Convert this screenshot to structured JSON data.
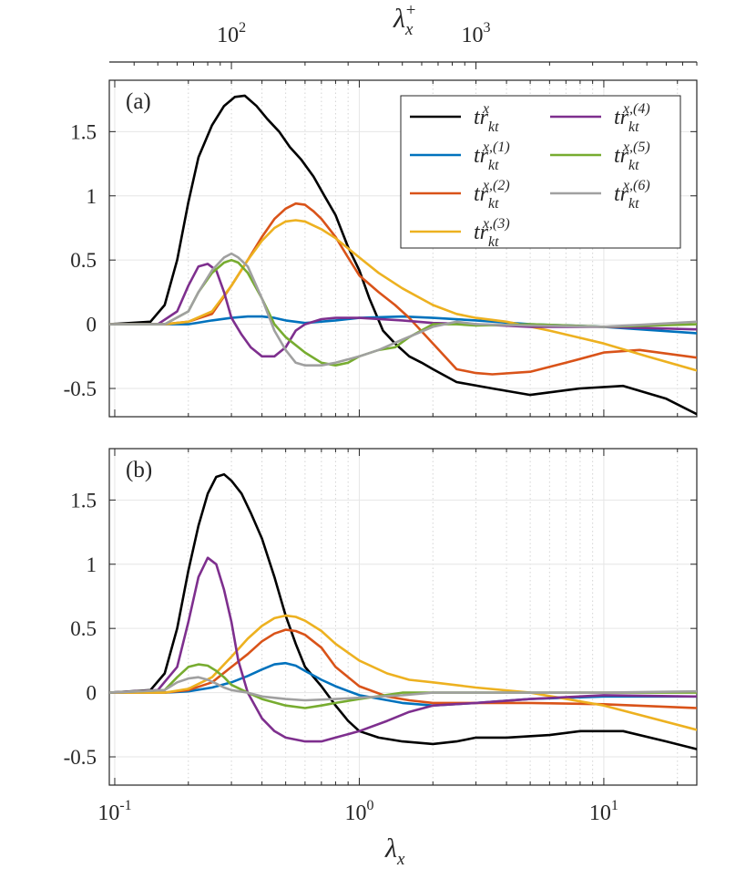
{
  "top_axis": {
    "label": "λ",
    "label_sub": "x",
    "label_sup": "+",
    "tick_labels": [
      {
        "base": "10",
        "exp": "2"
      },
      {
        "base": "10",
        "exp": "3"
      }
    ],
    "tick_positions_lambda_x": [
      0.3,
      3.0
    ]
  },
  "bottom_axis": {
    "label": "λ",
    "label_sub": "x",
    "tick_labels": [
      {
        "base": "10",
        "exp": "-1"
      },
      {
        "base": "10",
        "exp": "0"
      },
      {
        "base": "10",
        "exp": "1"
      }
    ]
  },
  "legend": {
    "entries": [
      {
        "base": "tr",
        "sub": "kt",
        "sup": "x",
        "color": "#000000"
      },
      {
        "base": "tr",
        "sub": "kt",
        "sup": "x,(1)",
        "color": "#0072BD"
      },
      {
        "base": "tr",
        "sub": "kt",
        "sup": "x,(2)",
        "color": "#D95319"
      },
      {
        "base": "tr",
        "sub": "kt",
        "sup": "x,(3)",
        "color": "#EDB120"
      },
      {
        "base": "tr",
        "sub": "kt",
        "sup": "x,(4)",
        "color": "#7E2F8E"
      },
      {
        "base": "tr",
        "sub": "kt",
        "sup": "x,(5)",
        "color": "#77AC30"
      },
      {
        "base": "tr",
        "sub": "kt",
        "sup": "x,(6)",
        "color": "#A0A0A0"
      }
    ]
  },
  "chart_data": [
    {
      "type": "line",
      "panel_label": "(a)",
      "xscale": "log",
      "xlim": [
        0.095,
        24
      ],
      "ylim": [
        -0.72,
        1.9
      ],
      "yticks": [
        1.5,
        1,
        0.5,
        0,
        -0.5
      ],
      "ytick_labels": [
        "1.5",
        "1",
        "0.5",
        "0",
        "-0.5"
      ],
      "grid": true,
      "series": [
        {
          "name": "tr_kt^x",
          "color": "#000000",
          "x": [
            0.095,
            0.14,
            0.16,
            0.18,
            0.2,
            0.22,
            0.25,
            0.28,
            0.31,
            0.34,
            0.38,
            0.42,
            0.47,
            0.52,
            0.58,
            0.65,
            0.72,
            0.8,
            0.9,
            1.0,
            1.1,
            1.25,
            1.4,
            1.6,
            1.8,
            2.0,
            2.5,
            3.5,
            5.0,
            8.0,
            12.0,
            18.0,
            24.0
          ],
          "values": [
            0,
            0.02,
            0.15,
            0.5,
            0.95,
            1.3,
            1.55,
            1.7,
            1.77,
            1.78,
            1.7,
            1.6,
            1.5,
            1.38,
            1.28,
            1.15,
            1.0,
            0.85,
            0.6,
            0.42,
            0.2,
            -0.05,
            -0.15,
            -0.25,
            -0.3,
            -0.35,
            -0.45,
            -0.5,
            -0.55,
            -0.5,
            -0.48,
            -0.58,
            -0.7
          ]
        },
        {
          "name": "tr_kt^x,(1)",
          "color": "#0072BD",
          "x": [
            0.095,
            0.2,
            0.25,
            0.3,
            0.35,
            0.4,
            0.45,
            0.5,
            0.6,
            0.8,
            1.0,
            1.5,
            2.0,
            3.0,
            5.0,
            10.0,
            24.0
          ],
          "values": [
            0,
            0.0,
            0.03,
            0.05,
            0.06,
            0.06,
            0.05,
            0.03,
            0.01,
            0.03,
            0.05,
            0.06,
            0.05,
            0.03,
            0.0,
            -0.02,
            -0.07
          ]
        },
        {
          "name": "tr_kt^x,(2)",
          "color": "#D95319",
          "x": [
            0.095,
            0.16,
            0.2,
            0.25,
            0.3,
            0.35,
            0.4,
            0.45,
            0.5,
            0.55,
            0.6,
            0.65,
            0.7,
            0.8,
            0.9,
            1.0,
            1.2,
            1.4,
            1.6,
            2.0,
            2.5,
            3.0,
            3.5,
            5.0,
            7.0,
            10.0,
            14.0,
            24.0
          ],
          "values": [
            0,
            0.0,
            0.02,
            0.08,
            0.3,
            0.5,
            0.68,
            0.82,
            0.9,
            0.94,
            0.93,
            0.88,
            0.82,
            0.68,
            0.52,
            0.38,
            0.25,
            0.15,
            0.05,
            -0.15,
            -0.35,
            -0.38,
            -0.39,
            -0.37,
            -0.3,
            -0.22,
            -0.2,
            -0.26
          ]
        },
        {
          "name": "tr_kt^x,(3)",
          "color": "#EDB120",
          "x": [
            0.095,
            0.16,
            0.2,
            0.25,
            0.3,
            0.35,
            0.4,
            0.45,
            0.5,
            0.55,
            0.6,
            0.7,
            0.8,
            1.0,
            1.2,
            1.5,
            2.0,
            2.5,
            3.0,
            4.0,
            6.0,
            10.0,
            15.0,
            24.0
          ],
          "values": [
            0,
            0.0,
            0.02,
            0.1,
            0.3,
            0.5,
            0.65,
            0.75,
            0.8,
            0.81,
            0.8,
            0.74,
            0.67,
            0.52,
            0.4,
            0.28,
            0.15,
            0.08,
            0.05,
            0.02,
            -0.05,
            -0.15,
            -0.25,
            -0.36
          ]
        },
        {
          "name": "tr_kt^x,(4)",
          "color": "#7E2F8E",
          "x": [
            0.095,
            0.15,
            0.18,
            0.2,
            0.22,
            0.24,
            0.26,
            0.28,
            0.3,
            0.33,
            0.36,
            0.4,
            0.45,
            0.5,
            0.55,
            0.6,
            0.7,
            0.8,
            1.0,
            1.5,
            2.0,
            3.0,
            5.0,
            10.0,
            24.0
          ],
          "values": [
            0,
            0.0,
            0.1,
            0.3,
            0.45,
            0.47,
            0.42,
            0.25,
            0.05,
            -0.08,
            -0.18,
            -0.25,
            -0.25,
            -0.18,
            -0.05,
            0.0,
            0.04,
            0.05,
            0.05,
            0.03,
            0.01,
            0.0,
            -0.02,
            -0.02,
            -0.04
          ]
        },
        {
          "name": "tr_kt^x,(5)",
          "color": "#77AC30",
          "x": [
            0.095,
            0.16,
            0.2,
            0.22,
            0.25,
            0.28,
            0.3,
            0.32,
            0.35,
            0.4,
            0.45,
            0.5,
            0.6,
            0.7,
            0.8,
            0.9,
            1.0,
            1.2,
            1.4,
            1.6,
            2.0,
            2.5,
            3.0,
            5.0,
            10.0,
            24.0
          ],
          "values": [
            0,
            0.0,
            0.1,
            0.25,
            0.4,
            0.48,
            0.5,
            0.48,
            0.4,
            0.2,
            0.0,
            -0.1,
            -0.22,
            -0.3,
            -0.32,
            -0.3,
            -0.25,
            -0.2,
            -0.18,
            -0.1,
            0.0,
            0.0,
            -0.01,
            0.0,
            -0.02,
            0.0
          ]
        },
        {
          "name": "tr_kt^x,(6)",
          "color": "#A0A0A0",
          "x": [
            0.095,
            0.16,
            0.2,
            0.22,
            0.25,
            0.28,
            0.3,
            0.32,
            0.35,
            0.4,
            0.45,
            0.5,
            0.55,
            0.6,
            0.7,
            0.8,
            1.0,
            1.2,
            1.5,
            2.0,
            2.5,
            3.0,
            5.0,
            10.0,
            24.0
          ],
          "values": [
            0,
            0.0,
            0.1,
            0.25,
            0.42,
            0.52,
            0.55,
            0.52,
            0.45,
            0.2,
            -0.05,
            -0.2,
            -0.3,
            -0.32,
            -0.32,
            -0.3,
            -0.25,
            -0.2,
            -0.12,
            -0.02,
            0.02,
            0.0,
            -0.01,
            -0.02,
            0.02
          ]
        }
      ]
    },
    {
      "type": "line",
      "panel_label": "(b)",
      "xscale": "log",
      "xlim": [
        0.095,
        24
      ],
      "ylim": [
        -0.72,
        1.9
      ],
      "yticks": [
        1.5,
        1,
        0.5,
        0,
        -0.5
      ],
      "ytick_labels": [
        "1.5",
        "1",
        "0.5",
        "0",
        "-0.5"
      ],
      "grid": true,
      "series": [
        {
          "name": "tr_kt^x",
          "color": "#000000",
          "x": [
            0.095,
            0.14,
            0.16,
            0.18,
            0.2,
            0.22,
            0.24,
            0.26,
            0.28,
            0.3,
            0.33,
            0.36,
            0.4,
            0.45,
            0.5,
            0.55,
            0.6,
            0.7,
            0.8,
            0.9,
            1.0,
            1.2,
            1.5,
            2.0,
            2.5,
            3.0,
            4.0,
            6.0,
            8.0,
            12.0,
            18.0,
            24.0
          ],
          "values": [
            0,
            0.02,
            0.15,
            0.5,
            0.95,
            1.3,
            1.55,
            1.68,
            1.7,
            1.65,
            1.55,
            1.4,
            1.2,
            0.9,
            0.6,
            0.38,
            0.2,
            0.05,
            -0.1,
            -0.22,
            -0.3,
            -0.35,
            -0.38,
            -0.4,
            -0.38,
            -0.35,
            -0.35,
            -0.33,
            -0.3,
            -0.3,
            -0.38,
            -0.44
          ]
        },
        {
          "name": "tr_kt^x,(1)",
          "color": "#0072BD",
          "x": [
            0.095,
            0.16,
            0.2,
            0.25,
            0.3,
            0.35,
            0.4,
            0.45,
            0.5,
            0.55,
            0.6,
            0.7,
            0.8,
            1.0,
            1.5,
            2.0,
            3.0,
            5.0,
            10.0,
            24.0
          ],
          "values": [
            0,
            0.0,
            0.01,
            0.04,
            0.08,
            0.13,
            0.18,
            0.22,
            0.23,
            0.21,
            0.17,
            0.1,
            0.05,
            -0.02,
            -0.08,
            -0.1,
            -0.08,
            -0.05,
            -0.03,
            -0.03
          ]
        },
        {
          "name": "tr_kt^x,(2)",
          "color": "#D95319",
          "x": [
            0.095,
            0.16,
            0.2,
            0.25,
            0.3,
            0.35,
            0.4,
            0.45,
            0.5,
            0.55,
            0.6,
            0.7,
            0.8,
            1.0,
            1.3,
            1.6,
            2.0,
            3.0,
            5.0,
            10.0,
            24.0
          ],
          "values": [
            0,
            0.0,
            0.02,
            0.08,
            0.2,
            0.3,
            0.4,
            0.46,
            0.49,
            0.48,
            0.45,
            0.35,
            0.2,
            0.05,
            -0.03,
            -0.06,
            -0.08,
            -0.08,
            -0.08,
            -0.09,
            -0.12
          ]
        },
        {
          "name": "tr_kt^x,(3)",
          "color": "#EDB120",
          "x": [
            0.095,
            0.16,
            0.2,
            0.25,
            0.3,
            0.35,
            0.4,
            0.45,
            0.5,
            0.55,
            0.6,
            0.7,
            0.8,
            1.0,
            1.3,
            1.6,
            2.0,
            3.0,
            5.0,
            10.0,
            24.0
          ],
          "values": [
            0,
            0.0,
            0.03,
            0.12,
            0.28,
            0.42,
            0.52,
            0.58,
            0.6,
            0.59,
            0.56,
            0.48,
            0.38,
            0.25,
            0.15,
            0.1,
            0.08,
            0.04,
            0.0,
            -0.1,
            -0.29
          ]
        },
        {
          "name": "tr_kt^x,(4)",
          "color": "#7E2F8E",
          "x": [
            0.095,
            0.15,
            0.18,
            0.2,
            0.22,
            0.24,
            0.26,
            0.28,
            0.3,
            0.32,
            0.35,
            0.4,
            0.45,
            0.5,
            0.6,
            0.7,
            0.8,
            1.0,
            1.3,
            1.6,
            2.0,
            3.0,
            5.0,
            10.0,
            24.0
          ],
          "values": [
            0,
            0.02,
            0.2,
            0.55,
            0.9,
            1.05,
            1.0,
            0.8,
            0.55,
            0.25,
            0.0,
            -0.2,
            -0.3,
            -0.35,
            -0.38,
            -0.38,
            -0.35,
            -0.3,
            -0.22,
            -0.15,
            -0.1,
            -0.08,
            -0.05,
            -0.02,
            -0.03
          ]
        },
        {
          "name": "tr_kt^x,(5)",
          "color": "#77AC30",
          "x": [
            0.095,
            0.16,
            0.18,
            0.2,
            0.22,
            0.24,
            0.26,
            0.28,
            0.3,
            0.35,
            0.4,
            0.5,
            0.6,
            0.7,
            0.8,
            1.0,
            1.5,
            2.0,
            3.0,
            10.0,
            24.0
          ],
          "values": [
            0,
            0.02,
            0.12,
            0.2,
            0.22,
            0.21,
            0.17,
            0.12,
            0.06,
            0.0,
            -0.05,
            -0.1,
            -0.12,
            -0.1,
            -0.08,
            -0.05,
            0.0,
            0.0,
            0.0,
            0.0,
            0.0
          ]
        },
        {
          "name": "tr_kt^x,(6)",
          "color": "#A0A0A0",
          "x": [
            0.095,
            0.16,
            0.18,
            0.2,
            0.22,
            0.24,
            0.26,
            0.28,
            0.3,
            0.35,
            0.4,
            0.5,
            0.6,
            0.8,
            1.0,
            1.5,
            2.0,
            3.0,
            10.0,
            24.0
          ],
          "values": [
            0,
            0.02,
            0.08,
            0.11,
            0.12,
            0.1,
            0.07,
            0.04,
            0.02,
            0.0,
            -0.03,
            -0.05,
            -0.06,
            -0.05,
            -0.04,
            -0.02,
            0.0,
            0.0,
            0.0,
            0.01
          ]
        }
      ]
    }
  ]
}
